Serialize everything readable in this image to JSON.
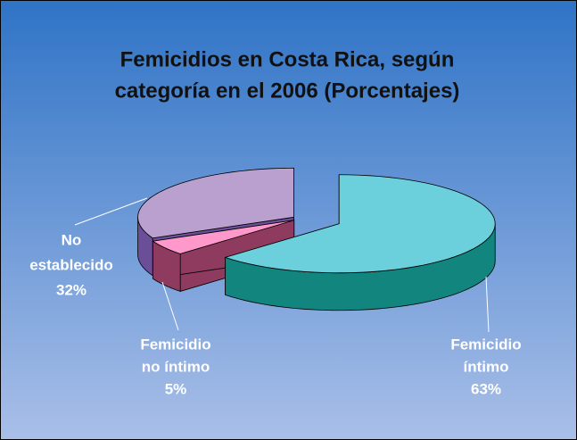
{
  "chart_data": {
    "type": "pie3d",
    "title": [
      "Femicidios en Costa Rica, según",
      "categoría en el 2006 (Porcentajes)"
    ],
    "categories": [
      [
        "Femicidio",
        "íntimo"
      ],
      [
        "Femicidio",
        "no íntimo"
      ],
      [
        "No",
        "establecido"
      ]
    ],
    "values": [
      63,
      5,
      32
    ],
    "value_labels": [
      "63%",
      "5%",
      "32%"
    ],
    "colors": [
      "#6ccfdc",
      "#ff99cc",
      "#b9a0cf"
    ],
    "side_colors": [
      "#11857e",
      "#8f3a5f",
      "#6a4f98"
    ]
  }
}
